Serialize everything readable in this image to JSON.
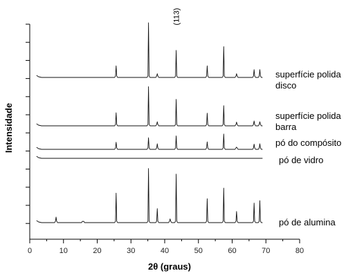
{
  "chart_data": {
    "type": "line",
    "xlabel": "2θ (graus)",
    "ylabel": "Intensidade",
    "xlim": [
      0,
      80
    ],
    "xticks": [
      0,
      10,
      20,
      30,
      40,
      50,
      60,
      70,
      80
    ],
    "y_tick_labels_shown": false,
    "grid": false,
    "legend": "none",
    "annotations": [
      {
        "text": "(113)",
        "x": 43.4,
        "orientation": "vertical"
      }
    ],
    "peak_positions": [
      25.6,
      35.2,
      37.8,
      43.4,
      52.6,
      57.5,
      61.3,
      66.5,
      68.2
    ],
    "series": [
      {
        "name": "superfície polida\ndisco",
        "label_lines": [
          "superfície polida",
          "disco"
        ],
        "x_start": 2.0,
        "x_end": 69.0,
        "baseline": 0.2,
        "peaks": [
          {
            "x": 25.6,
            "h": 0.62
          },
          {
            "x": 35.2,
            "h": 2.93
          },
          {
            "x": 37.8,
            "h": 0.2
          },
          {
            "x": 43.4,
            "h": 1.45
          },
          {
            "x": 52.6,
            "h": 0.62
          },
          {
            "x": 57.5,
            "h": 1.65
          },
          {
            "x": 61.3,
            "h": 0.2
          },
          {
            "x": 66.5,
            "h": 0.42
          },
          {
            "x": 68.2,
            "h": 0.42
          }
        ]
      },
      {
        "name": "superfície polida\nbarra",
        "label_lines": [
          "superfície polida",
          "barra"
        ],
        "x_start": 2.0,
        "x_end": 69.0,
        "baseline": 0.15,
        "peaks": [
          {
            "x": 25.6,
            "h": 0.7
          },
          {
            "x": 35.2,
            "h": 2.1
          },
          {
            "x": 37.8,
            "h": 0.22
          },
          {
            "x": 43.4,
            "h": 1.42
          },
          {
            "x": 52.6,
            "h": 0.68
          },
          {
            "x": 57.5,
            "h": 1.08
          },
          {
            "x": 61.3,
            "h": 0.2
          },
          {
            "x": 66.5,
            "h": 0.26
          },
          {
            "x": 68.2,
            "h": 0.22
          }
        ]
      },
      {
        "name": "pó do compósito",
        "label_lines": [
          "pó do compósito"
        ],
        "x_start": 2.0,
        "x_end": 69.0,
        "baseline": 0.08,
        "peaks": [
          {
            "x": 25.6,
            "h": 0.38
          },
          {
            "x": 35.2,
            "h": 0.62
          },
          {
            "x": 37.8,
            "h": 0.3
          },
          {
            "x": 43.4,
            "h": 0.72
          },
          {
            "x": 52.6,
            "h": 0.4
          },
          {
            "x": 57.5,
            "h": 0.82
          },
          {
            "x": 61.3,
            "h": 0.12
          },
          {
            "x": 66.5,
            "h": 0.28
          },
          {
            "x": 68.2,
            "h": 0.3
          }
        ]
      },
      {
        "name": "pó de vidro",
        "label_lines": [
          "pó de vidro"
        ],
        "x_start": 2.0,
        "x_end": 69.0,
        "baseline": 0.05,
        "peaks": []
      },
      {
        "name": "pó de alumina",
        "label_lines": [
          "pó de alumina"
        ],
        "x_start": 2.0,
        "x_end": 69.0,
        "baseline": 0.3,
        "peaks": [
          {
            "x": 7.8,
            "h": 0.3
          },
          {
            "x": 15.8,
            "h": 0.06
          },
          {
            "x": 25.6,
            "h": 1.58
          },
          {
            "x": 35.2,
            "h": 2.9
          },
          {
            "x": 37.8,
            "h": 0.75
          },
          {
            "x": 41.6,
            "h": 0.2
          },
          {
            "x": 43.4,
            "h": 2.6
          },
          {
            "x": 52.6,
            "h": 1.28
          },
          {
            "x": 57.5,
            "h": 1.85
          },
          {
            "x": 61.3,
            "h": 0.6
          },
          {
            "x": 66.5,
            "h": 1.05
          },
          {
            "x": 68.2,
            "h": 1.18
          }
        ]
      }
    ]
  }
}
